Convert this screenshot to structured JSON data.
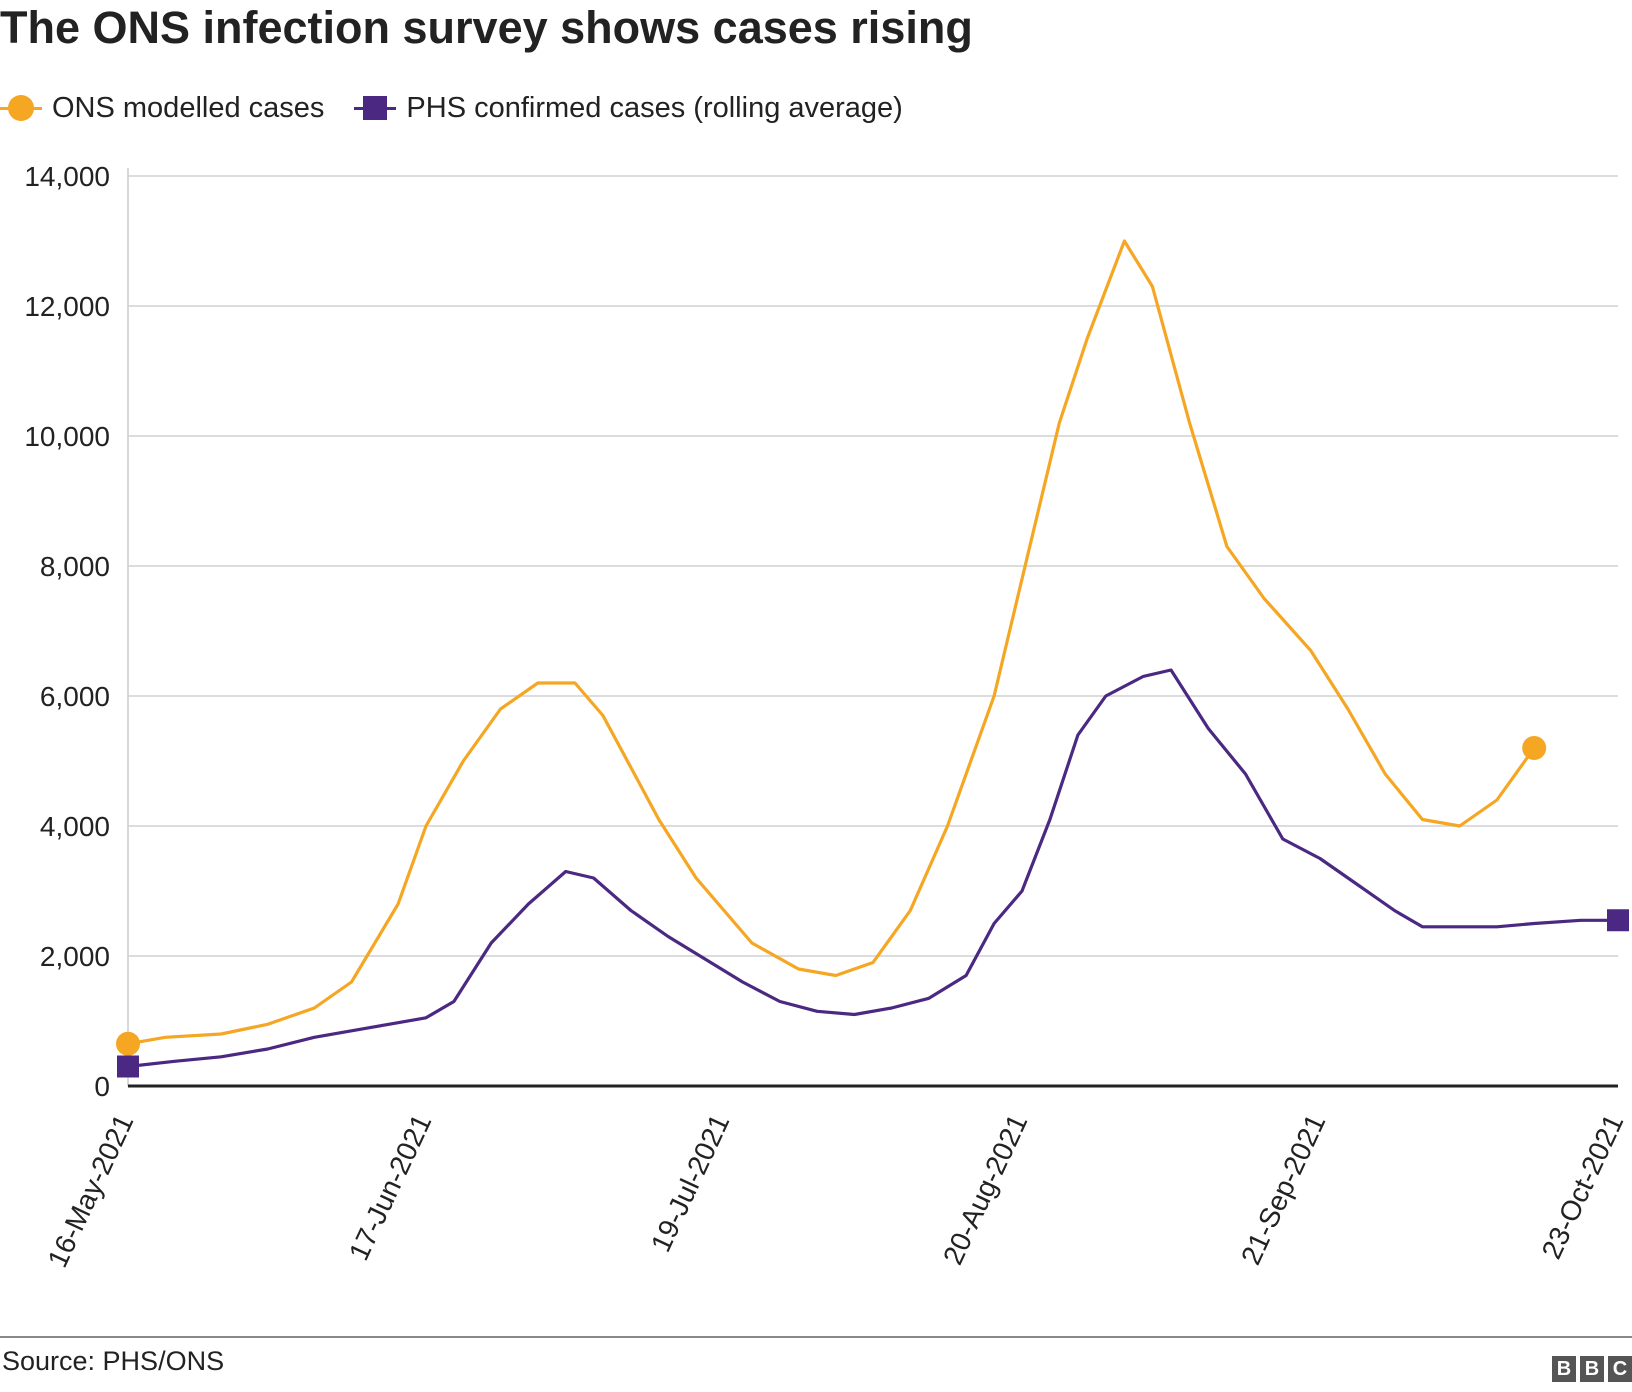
{
  "footer": {
    "source": "Source: PHS/ONS",
    "logo": "BBC"
  },
  "chart_data": {
    "type": "line",
    "title": "The ONS infection survey shows cases rising",
    "xlabel": "",
    "ylabel": "",
    "ylim": [
      0,
      14000
    ],
    "yticks": [
      0,
      2000,
      4000,
      6000,
      8000,
      10000,
      12000,
      14000
    ],
    "ytick_labels": [
      "0",
      "2,000",
      "4,000",
      "6,000",
      "8,000",
      "10,000",
      "12,000",
      "14,000"
    ],
    "xlim": [
      "2021-05-16",
      "2021-10-23"
    ],
    "xticks": [
      "2021-05-16",
      "2021-06-17",
      "2021-07-19",
      "2021-08-20",
      "2021-09-21",
      "2021-10-23"
    ],
    "xtick_labels": [
      "16-May-2021",
      "17-Jun-2021",
      "19-Jul-2021",
      "20-Aug-2021",
      "21-Sep-2021",
      "23-Oct-2021"
    ],
    "grid": true,
    "legend_position": "top-left",
    "series": [
      {
        "name": "ONS modelled cases",
        "color": "#f5a623",
        "marker": "circle",
        "points": [
          [
            "2021-05-16",
            650
          ],
          [
            "2021-05-20",
            750
          ],
          [
            "2021-05-26",
            800
          ],
          [
            "2021-05-31",
            950
          ],
          [
            "2021-06-05",
            1200
          ],
          [
            "2021-06-09",
            1600
          ],
          [
            "2021-06-14",
            2800
          ],
          [
            "2021-06-17",
            4000
          ],
          [
            "2021-06-21",
            5000
          ],
          [
            "2021-06-25",
            5800
          ],
          [
            "2021-06-29",
            6200
          ],
          [
            "2021-07-03",
            6200
          ],
          [
            "2021-07-06",
            5700
          ],
          [
            "2021-07-09",
            4900
          ],
          [
            "2021-07-12",
            4100
          ],
          [
            "2021-07-16",
            3200
          ],
          [
            "2021-07-19",
            2700
          ],
          [
            "2021-07-22",
            2200
          ],
          [
            "2021-07-27",
            1800
          ],
          [
            "2021-07-31",
            1700
          ],
          [
            "2021-08-04",
            1900
          ],
          [
            "2021-08-08",
            2700
          ],
          [
            "2021-08-12",
            4000
          ],
          [
            "2021-08-17",
            6000
          ],
          [
            "2021-08-20",
            7800
          ],
          [
            "2021-08-24",
            10200
          ],
          [
            "2021-08-27",
            11500
          ],
          [
            "2021-08-31",
            13000
          ],
          [
            "2021-09-03",
            12300
          ],
          [
            "2021-09-07",
            10200
          ],
          [
            "2021-09-11",
            8300
          ],
          [
            "2021-09-15",
            7500
          ],
          [
            "2021-09-20",
            6700
          ],
          [
            "2021-09-24",
            5800
          ],
          [
            "2021-09-28",
            4800
          ],
          [
            "2021-10-02",
            4100
          ],
          [
            "2021-10-06",
            4000
          ],
          [
            "2021-10-10",
            4400
          ],
          [
            "2021-10-14",
            5200
          ]
        ]
      },
      {
        "name": "PHS confirmed cases (rolling average)",
        "color": "#4b2881",
        "marker": "square",
        "points": [
          [
            "2021-05-16",
            300
          ],
          [
            "2021-05-21",
            380
          ],
          [
            "2021-05-26",
            450
          ],
          [
            "2021-05-31",
            570
          ],
          [
            "2021-06-05",
            750
          ],
          [
            "2021-06-09",
            850
          ],
          [
            "2021-06-13",
            950
          ],
          [
            "2021-06-17",
            1050
          ],
          [
            "2021-06-20",
            1300
          ],
          [
            "2021-06-24",
            2200
          ],
          [
            "2021-06-28",
            2800
          ],
          [
            "2021-07-02",
            3300
          ],
          [
            "2021-07-05",
            3200
          ],
          [
            "2021-07-09",
            2700
          ],
          [
            "2021-07-13",
            2300
          ],
          [
            "2021-07-17",
            1950
          ],
          [
            "2021-07-21",
            1600
          ],
          [
            "2021-07-25",
            1300
          ],
          [
            "2021-07-29",
            1150
          ],
          [
            "2021-08-02",
            1100
          ],
          [
            "2021-08-06",
            1200
          ],
          [
            "2021-08-10",
            1350
          ],
          [
            "2021-08-14",
            1700
          ],
          [
            "2021-08-17",
            2500
          ],
          [
            "2021-08-20",
            3000
          ],
          [
            "2021-08-23",
            4100
          ],
          [
            "2021-08-26",
            5400
          ],
          [
            "2021-08-29",
            6000
          ],
          [
            "2021-09-02",
            6300
          ],
          [
            "2021-09-05",
            6400
          ],
          [
            "2021-09-09",
            5500
          ],
          [
            "2021-09-13",
            4800
          ],
          [
            "2021-09-17",
            3800
          ],
          [
            "2021-09-21",
            3500
          ],
          [
            "2021-09-25",
            3100
          ],
          [
            "2021-09-29",
            2700
          ],
          [
            "2021-10-02",
            2450
          ],
          [
            "2021-10-06",
            2450
          ],
          [
            "2021-10-10",
            2450
          ],
          [
            "2021-10-14",
            2500
          ],
          [
            "2021-10-19",
            2550
          ],
          [
            "2021-10-23",
            2550
          ]
        ]
      }
    ]
  }
}
